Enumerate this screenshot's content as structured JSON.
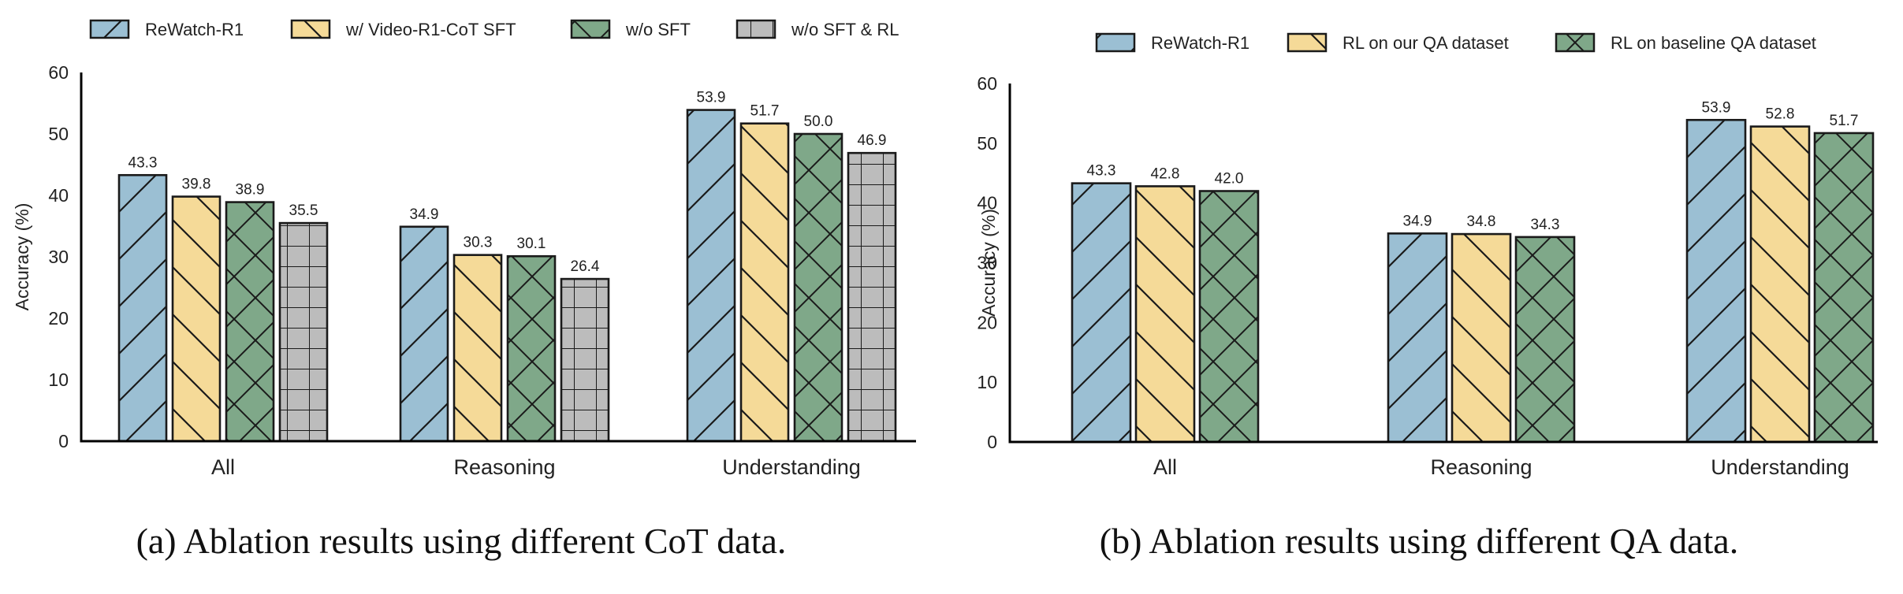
{
  "styles": {
    "series_colors": [
      "#9bbfd3",
      "#f5da98",
      "#7fa889",
      "#bcbcbc"
    ],
    "hatches": [
      "forward-diagonal",
      "back-diagonal",
      "diamond-cross",
      "grid"
    ]
  },
  "chart_data": [
    {
      "type": "bar",
      "caption": "(a) Ablation results using different CoT data.",
      "title": "",
      "xlabel": "",
      "ylabel": "Accuracy (%)",
      "ylim": [
        0,
        60
      ],
      "yticks": [
        0,
        10,
        20,
        30,
        40,
        50,
        60
      ],
      "grid": false,
      "legend_position": "top",
      "categories": [
        "All",
        "Reasoning",
        "Understanding"
      ],
      "series": [
        {
          "name": "ReWatch-R1",
          "values": [
            43.3,
            34.9,
            53.9
          ],
          "labels": [
            "43.3",
            "34.9",
            "53.9"
          ]
        },
        {
          "name": "w/ Video-R1-CoT SFT",
          "values": [
            39.8,
            30.3,
            51.7
          ],
          "labels": [
            "39.8",
            "30.3",
            "51.7"
          ]
        },
        {
          "name": "w/o SFT",
          "values": [
            38.9,
            30.1,
            50.0
          ],
          "labels": [
            "38.9",
            "30.1",
            "50.0"
          ]
        },
        {
          "name": "w/o SFT & RL",
          "values": [
            35.5,
            26.4,
            46.9
          ],
          "labels": [
            "35.5",
            "26.4",
            "46.9"
          ]
        }
      ]
    },
    {
      "type": "bar",
      "caption": "(b) Ablation results using different QA data.",
      "title": "",
      "xlabel": "",
      "ylabel": "Accuracy (%)",
      "ylim": [
        0,
        60
      ],
      "yticks": [
        0,
        10,
        20,
        30,
        40,
        50,
        60
      ],
      "grid": false,
      "legend_position": "top",
      "categories": [
        "All",
        "Reasoning",
        "Understanding"
      ],
      "series": [
        {
          "name": "ReWatch-R1",
          "values": [
            43.3,
            34.9,
            53.9
          ],
          "labels": [
            "43.3",
            "34.9",
            "53.9"
          ]
        },
        {
          "name": "RL on our QA dataset",
          "values": [
            42.8,
            34.8,
            52.8
          ],
          "labels": [
            "42.8",
            "34.8",
            "52.8"
          ]
        },
        {
          "name": "RL on baseline QA dataset",
          "values": [
            42.0,
            34.3,
            51.7
          ],
          "labels": [
            "42.0",
            "34.3",
            "51.7"
          ]
        }
      ]
    }
  ]
}
